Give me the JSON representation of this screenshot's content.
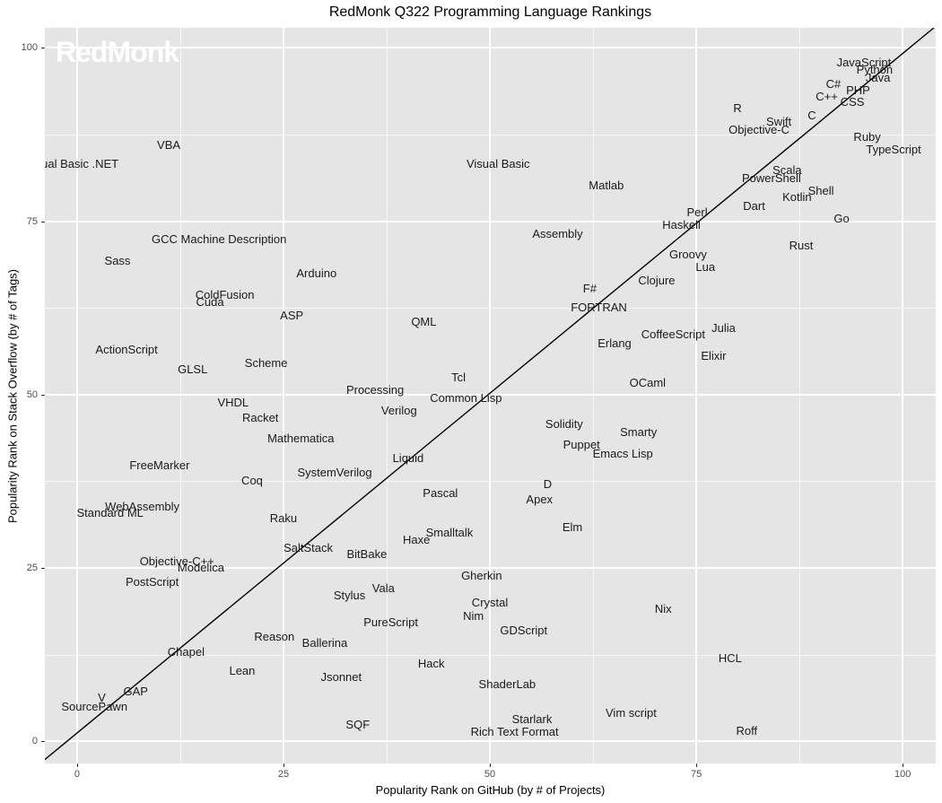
{
  "chart_data": {
    "type": "scatter",
    "title": "RedMonk Q322 Programming Language Rankings",
    "xlabel": "Popularity Rank on GitHub (by # of Projects)",
    "ylabel": "Popularity Rank on Stack Overflow (by # of Tags)",
    "watermark": "RedMonk",
    "xlim": [
      -3.9,
      104.0
    ],
    "ylim": [
      -3.2,
      102.9
    ],
    "xticks": [
      0,
      25,
      50,
      75,
      100
    ],
    "yticks": [
      0,
      25,
      50,
      75,
      100
    ],
    "xticks_minor": [
      12.5,
      37.5,
      62.5,
      87.5
    ],
    "yticks_minor": [
      12.5,
      37.5,
      62.5,
      87.5
    ],
    "grid": true,
    "legend": false,
    "panel_bg": "#E5E5E5",
    "grid_color": "#FFFFFF",
    "tick_label_color": "#4D4D4D",
    "label_color": "#1A1A1A",
    "reference_line": {
      "slope": 0.98,
      "intercept": 1.2,
      "color": "#000000",
      "width": 1.4
    },
    "points": [
      {
        "label": "JavaScript",
        "x": 95.3,
        "y": 97.9
      },
      {
        "label": "Python",
        "x": 96.6,
        "y": 96.8
      },
      {
        "label": "Java",
        "x": 97.0,
        "y": 95.7
      },
      {
        "label": "C#",
        "x": 91.6,
        "y": 94.8
      },
      {
        "label": "PHP",
        "x": 94.6,
        "y": 93.9
      },
      {
        "label": "C++",
        "x": 90.8,
        "y": 93.0
      },
      {
        "label": "CSS",
        "x": 93.9,
        "y": 92.1
      },
      {
        "label": "R",
        "x": 80.0,
        "y": 91.2
      },
      {
        "label": "C",
        "x": 89.0,
        "y": 90.2
      },
      {
        "label": "Swift",
        "x": 85.0,
        "y": 89.3
      },
      {
        "label": "Objective-C",
        "x": 82.6,
        "y": 88.1
      },
      {
        "label": "Ruby",
        "x": 95.7,
        "y": 87.1
      },
      {
        "label": "TypeScript",
        "x": 98.9,
        "y": 85.3
      },
      {
        "label": "VBA",
        "x": 11.1,
        "y": 86.0
      },
      {
        "label": "sual Basic .NET",
        "x": 0.0,
        "y": 83.2
      },
      {
        "label": "Visual Basic",
        "x": 51.0,
        "y": 83.2
      },
      {
        "label": "Scala",
        "x": 86.0,
        "y": 82.3
      },
      {
        "label": "PowerShell",
        "x": 84.1,
        "y": 81.1
      },
      {
        "label": "Matlab",
        "x": 64.1,
        "y": 80.1
      },
      {
        "label": "Shell",
        "x": 90.1,
        "y": 79.3
      },
      {
        "label": "Kotlin",
        "x": 87.2,
        "y": 78.4
      },
      {
        "label": "Dart",
        "x": 82.0,
        "y": 77.2
      },
      {
        "label": "Perl",
        "x": 75.1,
        "y": 76.2
      },
      {
        "label": "Go",
        "x": 92.6,
        "y": 75.4
      },
      {
        "label": "Haskell",
        "x": 73.2,
        "y": 74.4
      },
      {
        "label": "Assembly",
        "x": 58.2,
        "y": 73.2
      },
      {
        "label": "GCC Machine Description",
        "x": 17.2,
        "y": 72.3
      },
      {
        "label": "Rust",
        "x": 87.7,
        "y": 71.4
      },
      {
        "label": "Groovy",
        "x": 74.0,
        "y": 70.1
      },
      {
        "label": "Sass",
        "x": 4.9,
        "y": 69.3
      },
      {
        "label": "Lua",
        "x": 76.1,
        "y": 68.4
      },
      {
        "label": "Arduino",
        "x": 29.0,
        "y": 67.4
      },
      {
        "label": "Clojure",
        "x": 70.2,
        "y": 66.4
      },
      {
        "label": "F#",
        "x": 62.1,
        "y": 65.3
      },
      {
        "label": "ColdFusion",
        "x": 17.9,
        "y": 64.4
      },
      {
        "label": "Cuda",
        "x": 16.1,
        "y": 63.3
      },
      {
        "label": "FORTRAN",
        "x": 63.2,
        "y": 62.5
      },
      {
        "label": "ASP",
        "x": 26.0,
        "y": 61.4
      },
      {
        "label": "QML",
        "x": 42.0,
        "y": 60.5
      },
      {
        "label": "Julia",
        "x": 78.3,
        "y": 59.5
      },
      {
        "label": "CoffeeScript",
        "x": 72.2,
        "y": 58.6
      },
      {
        "label": "Erlang",
        "x": 65.1,
        "y": 57.4
      },
      {
        "label": "ActionScript",
        "x": 6.0,
        "y": 56.5
      },
      {
        "label": "Elixir",
        "x": 77.1,
        "y": 55.6
      },
      {
        "label": "Scheme",
        "x": 22.9,
        "y": 54.5
      },
      {
        "label": "GLSL",
        "x": 14.0,
        "y": 53.6
      },
      {
        "label": "Tcl",
        "x": 46.2,
        "y": 52.5
      },
      {
        "label": "OCaml",
        "x": 69.1,
        "y": 51.7
      },
      {
        "label": "Processing",
        "x": 36.1,
        "y": 50.6
      },
      {
        "label": "Common Lisp",
        "x": 47.1,
        "y": 49.5
      },
      {
        "label": "VHDL",
        "x": 18.9,
        "y": 48.8
      },
      {
        "label": "Verilog",
        "x": 39.0,
        "y": 47.6
      },
      {
        "label": "Racket",
        "x": 22.2,
        "y": 46.6
      },
      {
        "label": "Solidity",
        "x": 59.0,
        "y": 45.7
      },
      {
        "label": "Smarty",
        "x": 68.0,
        "y": 44.6
      },
      {
        "label": "Mathematica",
        "x": 27.1,
        "y": 43.7
      },
      {
        "label": "Puppet",
        "x": 61.1,
        "y": 42.7
      },
      {
        "label": "Emacs Lisp",
        "x": 66.1,
        "y": 41.5
      },
      {
        "label": "Liquid",
        "x": 40.1,
        "y": 40.8
      },
      {
        "label": "FreeMarker",
        "x": 10.0,
        "y": 39.7
      },
      {
        "label": "SystemVerilog",
        "x": 31.2,
        "y": 38.7
      },
      {
        "label": "Coq",
        "x": 21.2,
        "y": 37.6
      },
      {
        "label": "D",
        "x": 57.0,
        "y": 37.1
      },
      {
        "label": "Pascal",
        "x": 44.0,
        "y": 35.8
      },
      {
        "label": "Apex",
        "x": 56.0,
        "y": 34.9
      },
      {
        "label": "WebAssembly",
        "x": 7.9,
        "y": 33.8
      },
      {
        "label": "Standard ML",
        "x": 4.0,
        "y": 32.9
      },
      {
        "label": "Raku",
        "x": 25.0,
        "y": 32.1
      },
      {
        "label": "Elm",
        "x": 60.0,
        "y": 30.8
      },
      {
        "label": "Smalltalk",
        "x": 45.1,
        "y": 30.0
      },
      {
        "label": "Haxe",
        "x": 41.1,
        "y": 29.0
      },
      {
        "label": "SaltStack",
        "x": 28.0,
        "y": 27.8
      },
      {
        "label": "BitBake",
        "x": 35.1,
        "y": 26.9
      },
      {
        "label": "Objective-C++",
        "x": 12.1,
        "y": 25.9
      },
      {
        "label": "Modelica",
        "x": 15.0,
        "y": 25.0
      },
      {
        "label": "Gherkin",
        "x": 49.0,
        "y": 23.9
      },
      {
        "label": "PostScript",
        "x": 9.1,
        "y": 22.9
      },
      {
        "label": "Vala",
        "x": 37.1,
        "y": 22.0
      },
      {
        "label": "Stylus",
        "x": 33.0,
        "y": 21.0
      },
      {
        "label": "Crystal",
        "x": 50.0,
        "y": 19.9
      },
      {
        "label": "Nix",
        "x": 71.0,
        "y": 19.0
      },
      {
        "label": "Nim",
        "x": 48.0,
        "y": 18.0
      },
      {
        "label": "PureScript",
        "x": 38.0,
        "y": 17.1
      },
      {
        "label": "GDScript",
        "x": 54.1,
        "y": 16.0
      },
      {
        "label": "Reason",
        "x": 23.9,
        "y": 15.0
      },
      {
        "label": "Ballerina",
        "x": 30.0,
        "y": 14.2
      },
      {
        "label": "Chapel",
        "x": 13.2,
        "y": 12.9
      },
      {
        "label": "HCL",
        "x": 79.1,
        "y": 11.9
      },
      {
        "label": "Hack",
        "x": 42.9,
        "y": 11.1
      },
      {
        "label": "Lean",
        "x": 20.0,
        "y": 10.1
      },
      {
        "label": "Jsonnet",
        "x": 32.0,
        "y": 9.2
      },
      {
        "label": "ShaderLab",
        "x": 52.1,
        "y": 8.2
      },
      {
        "label": "GAP",
        "x": 7.1,
        "y": 7.1
      },
      {
        "label": "V",
        "x": 3.0,
        "y": 6.3
      },
      {
        "label": "SourcePawn",
        "x": 2.1,
        "y": 5.0
      },
      {
        "label": "Vim script",
        "x": 67.1,
        "y": 4.1
      },
      {
        "label": "Starlark",
        "x": 55.1,
        "y": 3.2
      },
      {
        "label": "Rich Text Format",
        "x": 53.0,
        "y": 1.3
      },
      {
        "label": "SQF",
        "x": 34.0,
        "y": 2.3
      },
      {
        "label": "Roff",
        "x": 81.1,
        "y": 1.4
      }
    ]
  }
}
